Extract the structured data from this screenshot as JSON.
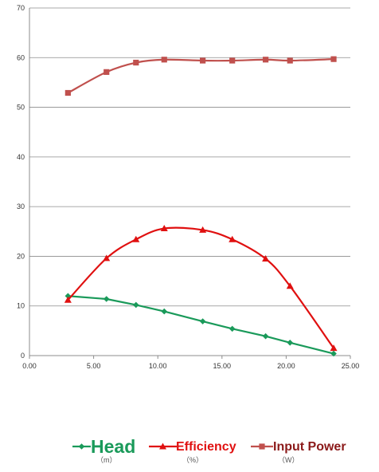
{
  "chart_data": {
    "type": "line",
    "title": "",
    "xlabel": "",
    "ylabel": "",
    "xlim": [
      0,
      25
    ],
    "ylim": [
      0,
      70
    ],
    "x_ticks": [
      "0.00",
      "5.00",
      "10.00",
      "15.00",
      "20.00",
      "25.00"
    ],
    "y_ticks": [
      "0",
      "10",
      "20",
      "30",
      "40",
      "50",
      "60",
      "70"
    ],
    "grid": "horizontal",
    "legend_position": "bottom",
    "series": [
      {
        "name": "Head",
        "unit": "（m）",
        "color": "#1a9a5a",
        "marker": "diamond",
        "x": [
          3.0,
          6.0,
          8.3,
          10.5,
          13.5,
          15.8,
          18.4,
          20.3,
          23.7
        ],
        "y": [
          12.0,
          11.4,
          10.2,
          8.9,
          6.9,
          5.4,
          3.9,
          2.6,
          0.4
        ]
      },
      {
        "name": "Efficiency",
        "unit": "（%）",
        "color": "#e01010",
        "marker": "triangle",
        "x": [
          3.0,
          6.0,
          8.3,
          10.5,
          13.5,
          15.8,
          18.4,
          20.3,
          23.7
        ],
        "y": [
          11.2,
          19.6,
          23.4,
          25.6,
          25.3,
          23.4,
          19.5,
          14.0,
          1.5
        ]
      },
      {
        "name": "Input Power",
        "unit": "（W）",
        "color": "#c0504d",
        "marker": "square",
        "x": [
          3.0,
          6.0,
          8.3,
          10.5,
          13.5,
          15.8,
          18.4,
          20.3,
          23.7
        ],
        "y": [
          52.9,
          57.1,
          59.0,
          59.6,
          59.4,
          59.4,
          59.6,
          59.4,
          59.7
        ]
      }
    ]
  }
}
